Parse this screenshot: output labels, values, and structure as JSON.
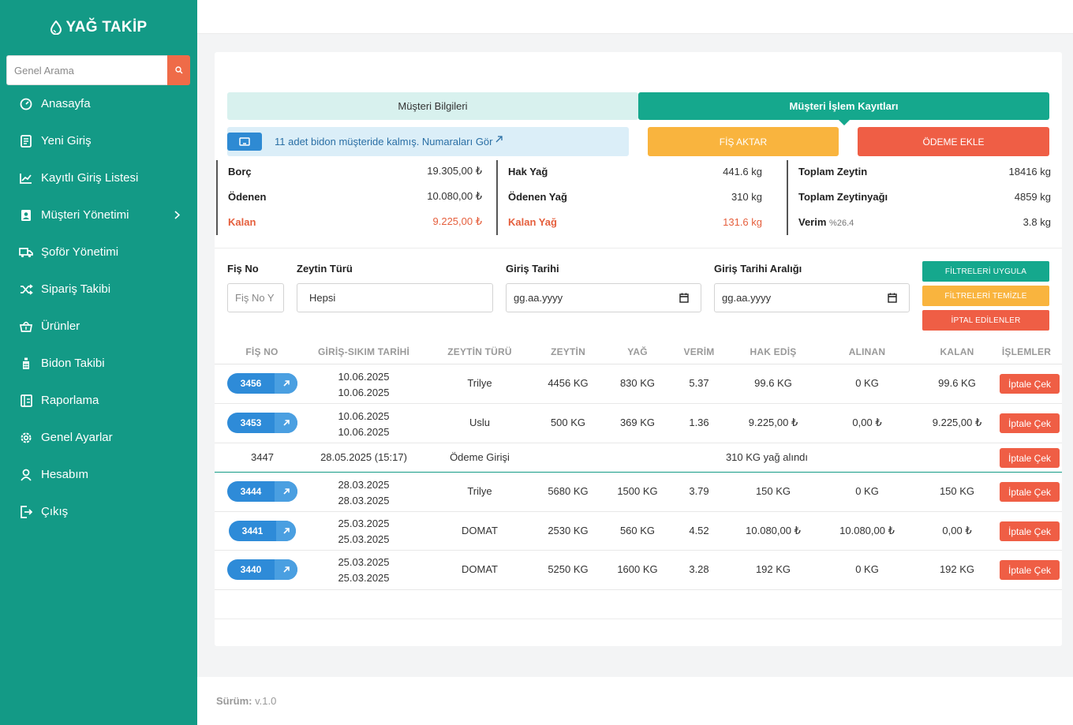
{
  "app": {
    "brand": "YAĞ TAKİP"
  },
  "search": {
    "placeholder": "Genel Arama"
  },
  "sidebar": {
    "items": [
      {
        "label": "Anasayfa",
        "icon": "dashboard-icon"
      },
      {
        "label": "Yeni Giriş",
        "icon": "document-icon"
      },
      {
        "label": "Kayıtlı Giriş Listesi",
        "icon": "chart-line-icon"
      },
      {
        "label": "Müşteri Yönetimi",
        "icon": "user-card-icon"
      },
      {
        "label": "Şoför Yönetimi",
        "icon": "truck-icon"
      },
      {
        "label": "Sipariş Takibi",
        "icon": "shuffle-icon"
      },
      {
        "label": "Ürünler",
        "icon": "basket-icon"
      },
      {
        "label": "Bidon Takibi",
        "icon": "bottle-icon"
      },
      {
        "label": "Raporlama",
        "icon": "report-icon"
      },
      {
        "label": "Genel Ayarlar",
        "icon": "gear-icon"
      },
      {
        "label": "Hesabım",
        "icon": "user-icon"
      },
      {
        "label": "Çıkış",
        "icon": "logout-icon"
      }
    ]
  },
  "tabs": {
    "info": "Müşteri Bilgileri",
    "records": "Müşteri İşlem Kayıtları"
  },
  "notice": {
    "text": "11 adet bidon müşteride kalmış. Numaraları Gör"
  },
  "actions": {
    "fis_aktar": "FİŞ AKTAR",
    "odeme_ekle": "ÖDEME EKLE"
  },
  "summary": {
    "money": [
      {
        "label": "Borç",
        "value": "19.305,00 ₺"
      },
      {
        "label": "Ödenen",
        "value": "10.080,00 ₺"
      },
      {
        "label": "Kalan",
        "value": "9.225,00 ₺"
      }
    ],
    "oil": [
      {
        "label": "Hak Yağ",
        "value": "441.6 kg"
      },
      {
        "label": "Ödenen Yağ",
        "value": "310 kg"
      },
      {
        "label": "Kalan Yağ",
        "value": "131.6 kg"
      }
    ],
    "totals": [
      {
        "label": "Toplam Zeytin",
        "value": "18416 kg"
      },
      {
        "label": "Toplam Zeytinyağı",
        "value": "4859 kg"
      },
      {
        "label": "Verim",
        "sub": "%26.4",
        "value": "3.8 kg"
      }
    ]
  },
  "filters": {
    "fis_no_label": "Fiş No",
    "fis_no_placeholder": "Fiş No Y",
    "zeytin_turu_label": "Zeytin Türü",
    "zeytin_turu_value": "Hepsi",
    "giris_tarihi_label": "Giriş Tarihi",
    "giris_tarihi_value": "gg.aa.yyyy",
    "aralik_label": "Giriş Tarihi Aralığı",
    "aralik_value": "gg.aa.yyyy",
    "apply": "FİLTRELERİ UYGULA",
    "clear": "FİLTRELERİ TEMİZLE",
    "cancelled": "İPTAL EDİLENLER"
  },
  "table": {
    "headers": [
      "FİŞ NO",
      "GİRİŞ-SIKIM TARİHİ",
      "ZEYTİN TÜRÜ",
      "ZEYTİN",
      "YAĞ",
      "VERİM",
      "HAK EDİŞ",
      "ALINAN",
      "KALAN",
      "İŞLEMLER"
    ],
    "cancel_label": "İptale Çek",
    "rows": [
      {
        "fis": "3456",
        "date1": "10.06.2025",
        "date2": "10.06.2025",
        "type": "Trilye",
        "zeytin": "4456 KG",
        "yag": "830 KG",
        "verim": "5.37",
        "hak": "99.6 KG",
        "alinan": "0 KG",
        "kalan": "99.6 KG"
      },
      {
        "fis": "3453",
        "date1": "10.06.2025",
        "date2": "10.06.2025",
        "type": "Uslu",
        "zeytin": "500 KG",
        "yag": "369 KG",
        "verim": "1.36",
        "hak": "9.225,00 ₺",
        "alinan": "0,00 ₺",
        "kalan": "9.225,00 ₺"
      },
      {
        "fis": "3444",
        "date1": "28.03.2025",
        "date2": "28.03.2025",
        "type": "Trilye",
        "zeytin": "5680 KG",
        "yag": "1500 KG",
        "verim": "3.79",
        "hak": "150 KG",
        "alinan": "0 KG",
        "kalan": "150 KG"
      },
      {
        "fis": "3441",
        "date1": "25.03.2025",
        "date2": "25.03.2025",
        "type": "DOMAT",
        "zeytin": "2530 KG",
        "yag": "560 KG",
        "verim": "4.52",
        "hak": "10.080,00 ₺",
        "alinan": "10.080,00 ₺",
        "kalan": "0,00 ₺"
      },
      {
        "fis": "3440",
        "date1": "25.03.2025",
        "date2": "25.03.2025",
        "type": "DOMAT",
        "zeytin": "5250 KG",
        "yag": "1600 KG",
        "verim": "3.28",
        "hak": "192 KG",
        "alinan": "0 KG",
        "kalan": "192 KG"
      }
    ],
    "payment_row": {
      "fis": "3447",
      "date": "28.05.2025 (15:17)",
      "type": "Ödeme Girişi",
      "note": "310 KG yağ alındı"
    }
  },
  "footer": {
    "label": "Sürüm:",
    "version": "v.1.0"
  },
  "colors": {
    "sidebar": "#139a86",
    "accent": "#15a88d",
    "danger": "#ef5e45",
    "warning": "#f9b43e",
    "info": "#2e8bd8"
  }
}
